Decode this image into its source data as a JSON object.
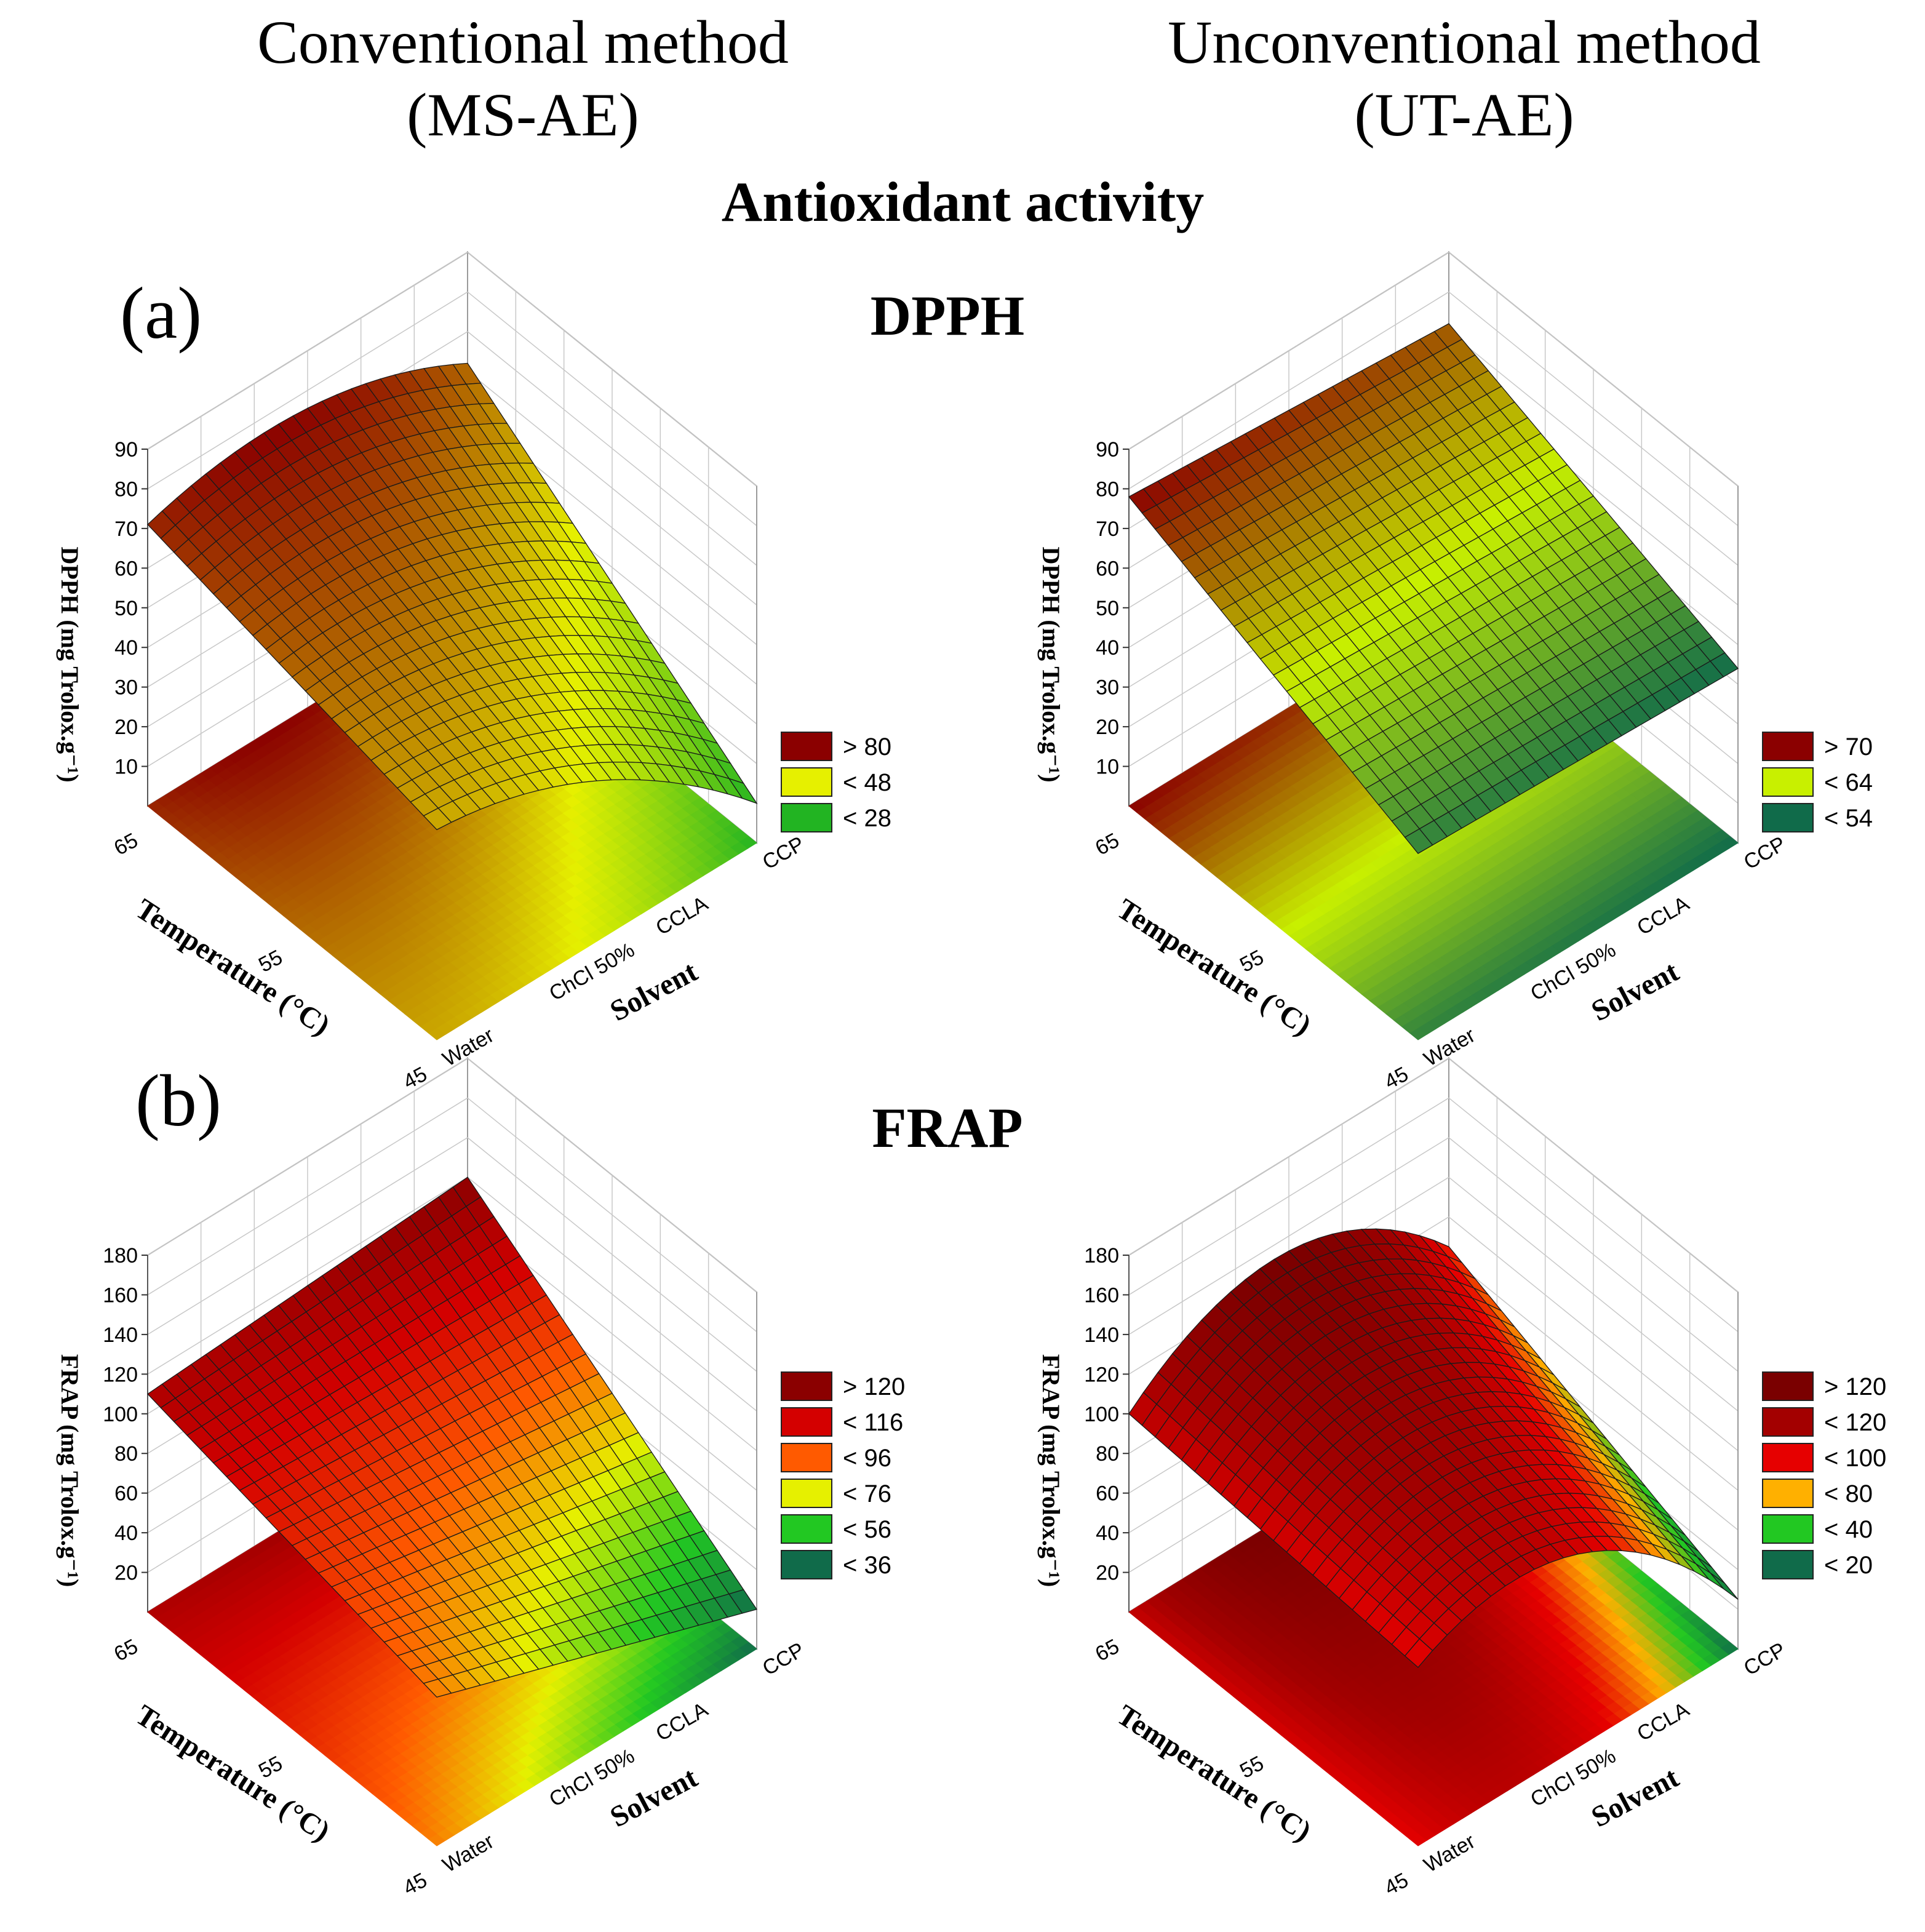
{
  "header": {
    "conventional_line1": "Conventional method",
    "conventional_line2": "(MS-AE)",
    "unconventional_line1": "Unconventional method",
    "unconventional_line2": "(UT-AE)",
    "main_title": "Antioxidant activity",
    "panel_a_letter": "(a)",
    "panel_a_title": "DPPH",
    "panel_b_letter": "(b)",
    "panel_b_title": "FRAP"
  },
  "chart_data": [
    {
      "id": "dpph-ms-ae",
      "type": "surface3d",
      "zlabel": "DPPH (mg Trolox.g⁻¹)",
      "xlabel": "Temperature (°C)",
      "ylabel": "Solvent",
      "x_ticks": [
        "65",
        "55",
        "45"
      ],
      "y_ticks": [
        "Water",
        "ChCl 50%",
        "CCLA",
        "CCP"
      ],
      "z_ticks": [
        "10",
        "20",
        "30",
        "40",
        "50",
        "60",
        "70",
        "80",
        "90"
      ],
      "zlim": [
        0,
        90
      ],
      "surface_corners": {
        "t65_water": 71,
        "t65_ccp": 62,
        "t45_water": 53,
        "t45_ccp": 10
      },
      "surface_curvature": 9,
      "legend": [
        {
          "label": "> 80",
          "color": "#8b0000"
        },
        {
          "label": "< 48",
          "color": "#e6f000"
        },
        {
          "label": "< 28",
          "color": "#22b422"
        }
      ]
    },
    {
      "id": "dpph-ut-ae",
      "type": "surface3d",
      "zlabel": "DPPH (mg Trolox.g⁻¹)",
      "xlabel": "Temperature (°C)",
      "ylabel": "Solvent",
      "x_ticks": [
        "65",
        "55",
        "45"
      ],
      "y_ticks": [
        "Water",
        "ChCl 50%",
        "CCLA",
        "CCP"
      ],
      "z_ticks": [
        "10",
        "20",
        "30",
        "40",
        "50",
        "60",
        "70",
        "80",
        "90"
      ],
      "zlim": [
        0,
        90
      ],
      "surface_corners": {
        "t65_water": 78,
        "t65_ccp": 72,
        "t45_water": 47,
        "t45_ccp": 44
      },
      "surface_curvature": 0,
      "legend": [
        {
          "label": "> 70",
          "color": "#8b0000"
        },
        {
          "label": "< 64",
          "color": "#c8f000"
        },
        {
          "label": "< 54",
          "color": "#106b4a"
        }
      ]
    },
    {
      "id": "frap-ms-ae",
      "type": "surface3d",
      "zlabel": "FRAP (mg Trolox.g⁻¹)",
      "xlabel": "Temperature (°C)",
      "ylabel": "Solvent",
      "x_ticks": [
        "65",
        "55",
        "45"
      ],
      "y_ticks": [
        "Water",
        "ChCl 50%",
        "CCLA",
        "CCP"
      ],
      "z_ticks": [
        "20",
        "40",
        "60",
        "80",
        "100",
        "120",
        "140",
        "160",
        "180"
      ],
      "zlim": [
        0,
        180
      ],
      "surface_corners": {
        "t65_water": 110,
        "t65_ccp": 120,
        "t45_water": 75,
        "t45_ccp": 20
      },
      "surface_curvature": 0,
      "legend": [
        {
          "label": "> 120",
          "color": "#8b0000"
        },
        {
          "label": "< 116",
          "color": "#d40000"
        },
        {
          "label": "< 96",
          "color": "#ff5a00"
        },
        {
          "label": "< 76",
          "color": "#e6f000"
        },
        {
          "label": "< 56",
          "color": "#22c822"
        },
        {
          "label": "< 36",
          "color": "#106b4a"
        }
      ]
    },
    {
      "id": "frap-ut-ae",
      "type": "surface3d",
      "zlabel": "FRAP (mg Trolox.g⁻¹)",
      "xlabel": "Temperature (°C)",
      "ylabel": "Solvent",
      "x_ticks": [
        "65",
        "55",
        "45"
      ],
      "y_ticks": [
        "Water",
        "ChCl 50%",
        "CCLA",
        "CCP"
      ],
      "z_ticks": [
        "20",
        "40",
        "60",
        "80",
        "100",
        "120",
        "140",
        "160",
        "180"
      ],
      "zlim": [
        0,
        180
      ],
      "surface_corners": {
        "t65_water": 100,
        "t65_ccp": 85,
        "t45_water": 90,
        "t45_ccp": 25
      },
      "surface_curvature": 40,
      "legend": [
        {
          "label": "> 120",
          "color": "#7a0000"
        },
        {
          "label": "< 120",
          "color": "#a30000"
        },
        {
          "label": "< 100",
          "color": "#e60000"
        },
        {
          "label": "< 80",
          "color": "#ffb000"
        },
        {
          "label": "< 40",
          "color": "#22c822"
        },
        {
          "label": "< 20",
          "color": "#106b4a"
        }
      ]
    }
  ]
}
